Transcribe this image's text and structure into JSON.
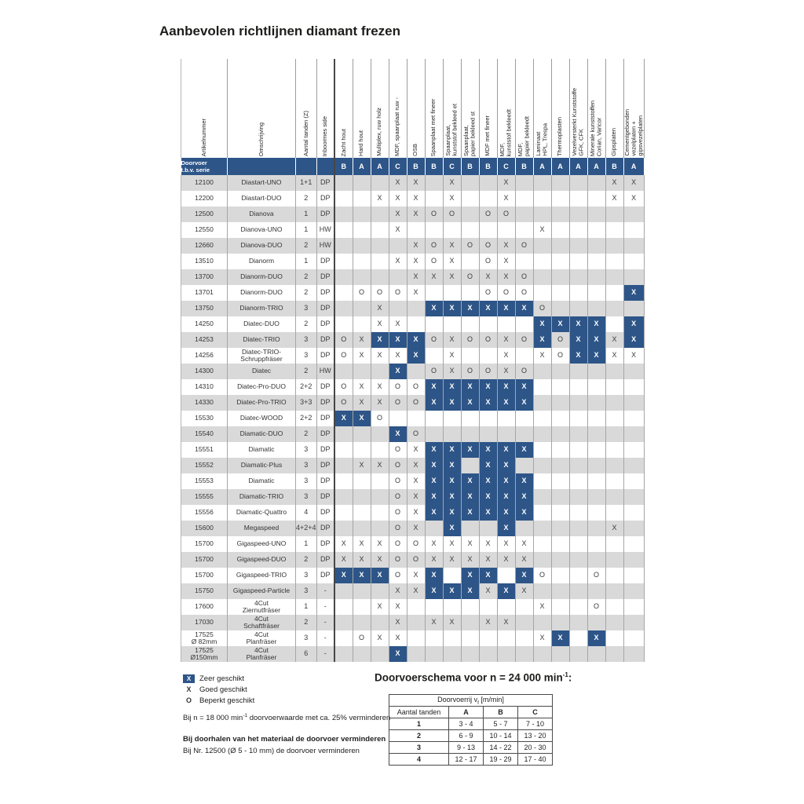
{
  "title": "Aanbevolen richtlijnen diamant frezen",
  "colors": {
    "blue": "#2d5588",
    "grey_row": "#d9d9d9"
  },
  "matrix": {
    "left_headers": [
      "Artikelnummer",
      "Omschrijving",
      "Aantal tanden (Z)",
      "Inboormes side"
    ],
    "material_headers": [
      "Zacht hout",
      "Hard hout",
      "Multiplex, ruw holz",
      "MDF, spaanplaat ruw -",
      "OSB",
      "Spaanplaat met fineer",
      "Spaanplaat,\nkunststof bekleed et",
      "Spaanplaat,\npapier bekleed st",
      "MDF met fineer",
      "MDF,\nkunststof bekleedt",
      "MDF,\npapier bekleedt",
      "Laminaat\nHPL, Trespa",
      "Thermoplasten",
      "Vezelversterkt Kunststoffe\nGFK, CFK",
      "Minerale kunststoffen\nCorian, Varicor",
      "Gipsplaten",
      "Cementgebonden\nvezelplaten +\ngipsvezelplaten"
    ],
    "doorvoer_label": "Doorvoer\nt.b.v. serie",
    "doorvoer_letters": [
      "B",
      "A",
      "A",
      "C",
      "B",
      "B",
      "C",
      "B",
      "B",
      "C",
      "B",
      "A",
      "A",
      "A",
      "A",
      "B",
      "A"
    ],
    "rows": [
      {
        "nr": "12100",
        "name": "Diastart-UNO",
        "tanden": "1+1",
        "boring": "DP",
        "cells": [
          "",
          "",
          "",
          "X",
          "X",
          "",
          "X",
          "",
          "",
          "X",
          "",
          "",
          "",
          "",
          "",
          "X",
          "X"
        ]
      },
      {
        "nr": "12200",
        "name": "Diastart-DUO",
        "tanden": "2",
        "boring": "DP",
        "cells": [
          "",
          "",
          "X",
          "X",
          "X",
          "",
          "X",
          "",
          "",
          "X",
          "",
          "",
          "",
          "",
          "",
          "X",
          "X"
        ]
      },
      {
        "nr": "12500",
        "name": "Dianova",
        "tanden": "1",
        "boring": "DP",
        "cells": [
          "",
          "",
          "",
          "X",
          "X",
          "O",
          "O",
          "",
          "O",
          "O",
          "",
          "",
          "",
          "",
          "",
          "",
          ""
        ]
      },
      {
        "nr": "12550",
        "name": "Dianova-UNO",
        "tanden": "1",
        "boring": "HW",
        "cells": [
          "",
          "",
          "",
          "X",
          "",
          "",
          "",
          "",
          "",
          "",
          "",
          "X",
          "",
          "",
          "",
          "",
          ""
        ]
      },
      {
        "nr": "12660",
        "name": "Dianova-DUO",
        "tanden": "2",
        "boring": "HW",
        "cells": [
          "",
          "",
          "",
          "",
          "X",
          "O",
          "X",
          "O",
          "O",
          "X",
          "O",
          "",
          "",
          "",
          "",
          "",
          ""
        ]
      },
      {
        "nr": "13510",
        "name": "Dianorm",
        "tanden": "1",
        "boring": "DP",
        "cells": [
          "",
          "",
          "",
          "X",
          "X",
          "O",
          "X",
          "",
          "O",
          "X",
          "",
          "",
          "",
          "",
          "",
          "",
          ""
        ]
      },
      {
        "nr": "13700",
        "name": "Dianorm-DUO",
        "tanden": "2",
        "boring": "DP",
        "cells": [
          "",
          "",
          "",
          "",
          "X",
          "X",
          "X",
          "O",
          "X",
          "X",
          "O",
          "",
          "",
          "",
          "",
          "",
          ""
        ]
      },
      {
        "nr": "13701",
        "name": "Dianorm-DUO",
        "tanden": "2",
        "boring": "DP",
        "cells": [
          "",
          "O",
          "O",
          "O",
          "X",
          "",
          "",
          "",
          "O",
          "O",
          "O",
          "",
          "",
          "",
          "",
          "",
          "BX"
        ]
      },
      {
        "nr": "13750",
        "name": "Dianorm-TRIO",
        "tanden": "3",
        "boring": "DP",
        "cells": [
          "",
          "",
          "X",
          "",
          "",
          "BX",
          "BX",
          "BX",
          "BX",
          "BX",
          "BX",
          "O",
          "",
          "",
          "",
          "",
          ""
        ]
      },
      {
        "nr": "14250",
        "name": "Diatec-DUO",
        "tanden": "2",
        "boring": "DP",
        "cells": [
          "",
          "",
          "X",
          "X",
          "",
          "",
          "",
          "",
          "",
          "",
          "",
          "BX",
          "BX",
          "BX",
          "BX",
          "",
          "BX"
        ]
      },
      {
        "nr": "14253",
        "name": "Diatec-TRIO",
        "tanden": "3",
        "boring": "DP",
        "cells": [
          "O",
          "X",
          "BX",
          "BX",
          "BX",
          "O",
          "X",
          "O",
          "O",
          "X",
          "O",
          "BX",
          "O",
          "BX",
          "BX",
          "X",
          "BX"
        ]
      },
      {
        "nr": "14256",
        "name": "Diatec-TRIO-\nSchruppfräser",
        "tanden": "3",
        "boring": "DP",
        "cells": [
          "O",
          "X",
          "X",
          "X",
          "BX",
          "",
          "X",
          "",
          "",
          "X",
          "",
          "X",
          "O",
          "BX",
          "BX",
          "X",
          "X"
        ]
      },
      {
        "nr": "14300",
        "name": "Diatec",
        "tanden": "2",
        "boring": "HW",
        "cells": [
          "",
          "",
          "",
          "BX",
          "",
          "O",
          "X",
          "O",
          "O",
          "X",
          "O",
          "",
          "",
          "",
          "",
          "",
          ""
        ]
      },
      {
        "nr": "14310",
        "name": "Diatec-Pro-DUO",
        "tanden": "2+2",
        "boring": "DP",
        "cells": [
          "O",
          "X",
          "X",
          "O",
          "O",
          "BX",
          "BX",
          "BX",
          "BX",
          "BX",
          "BX",
          "",
          "",
          "",
          "",
          "",
          ""
        ]
      },
      {
        "nr": "14330",
        "name": "Diatec-Pro-TRIO",
        "tanden": "3+3",
        "boring": "DP",
        "cells": [
          "O",
          "X",
          "X",
          "O",
          "O",
          "BX",
          "BX",
          "BX",
          "BX",
          "BX",
          "BX",
          "",
          "",
          "",
          "",
          "",
          ""
        ]
      },
      {
        "nr": "15530",
        "name": "Diatec-WOOD",
        "tanden": "2+2",
        "boring": "DP",
        "cells": [
          "BX",
          "BX",
          "O",
          "",
          "",
          "",
          "",
          "",
          "",
          "",
          "",
          "",
          "",
          "",
          "",
          "",
          ""
        ]
      },
      {
        "nr": "15540",
        "name": "Diamatic-DUO",
        "tanden": "2",
        "boring": "DP",
        "cells": [
          "",
          "",
          "",
          "BX",
          "O",
          "",
          "",
          "",
          "",
          "",
          "",
          "",
          "",
          "",
          "",
          "",
          ""
        ]
      },
      {
        "nr": "15551",
        "name": "Diamatic",
        "tanden": "3",
        "boring": "DP",
        "cells": [
          "",
          "",
          "",
          "O",
          "X",
          "BX",
          "BX",
          "BX",
          "BX",
          "BX",
          "BX",
          "",
          "",
          "",
          "",
          "",
          ""
        ]
      },
      {
        "nr": "15552",
        "name": "Diamatic-Plus",
        "tanden": "3",
        "boring": "DP",
        "cells": [
          "",
          "X",
          "X",
          "O",
          "X",
          "BX",
          "BX",
          "",
          "BX",
          "BX",
          "",
          "",
          "",
          "",
          "",
          "",
          ""
        ]
      },
      {
        "nr": "15553",
        "name": "Diamatic",
        "tanden": "3",
        "boring": "DP",
        "cells": [
          "",
          "",
          "",
          "O",
          "X",
          "BX",
          "BX",
          "BX",
          "BX",
          "BX",
          "BX",
          "",
          "",
          "",
          "",
          "",
          ""
        ]
      },
      {
        "nr": "15555",
        "name": "Diamatic-TRIO",
        "tanden": "3",
        "boring": "DP",
        "cells": [
          "",
          "",
          "",
          "O",
          "X",
          "BX",
          "BX",
          "BX",
          "BX",
          "BX",
          "BX",
          "",
          "",
          "",
          "",
          "",
          ""
        ]
      },
      {
        "nr": "15556",
        "name": "Diamatic-Quattro",
        "tanden": "4",
        "boring": "DP",
        "cells": [
          "",
          "",
          "",
          "O",
          "X",
          "BX",
          "BX",
          "BX",
          "BX",
          "BX",
          "BX",
          "",
          "",
          "",
          "",
          "",
          ""
        ]
      },
      {
        "nr": "15600",
        "name": "Megaspeed",
        "tanden": "4+2+4",
        "boring": "DP",
        "cells": [
          "",
          "",
          "",
          "O",
          "X",
          "",
          "BX",
          "",
          "",
          "BX",
          "",
          "",
          "",
          "",
          "",
          "X",
          ""
        ]
      },
      {
        "nr": "15700",
        "name": "Gigaspeed-UNO",
        "tanden": "1",
        "boring": "DP",
        "cells": [
          "X",
          "X",
          "X",
          "O",
          "O",
          "X",
          "X",
          "X",
          "X",
          "X",
          "X",
          "",
          "",
          "",
          "",
          "",
          ""
        ]
      },
      {
        "nr": "15700",
        "name": "Gigaspeed-DUO",
        "tanden": "2",
        "boring": "DP",
        "cells": [
          "X",
          "X",
          "X",
          "O",
          "O",
          "X",
          "X",
          "X",
          "X",
          "X",
          "X",
          "",
          "",
          "",
          "",
          "",
          ""
        ]
      },
      {
        "nr": "15700",
        "name": "Gigaspeed-TRIO",
        "tanden": "3",
        "boring": "DP",
        "cells": [
          "BX",
          "BX",
          "BX",
          "O",
          "X",
          "BX",
          "",
          "BX",
          "BX",
          "",
          "BX",
          "O",
          "",
          "",
          "O",
          "",
          ""
        ]
      },
      {
        "nr": "15750",
        "name": "Gigaspeed-Particle",
        "tanden": "3",
        "boring": "-",
        "cells": [
          "",
          "",
          "",
          "X",
          "X",
          "BX",
          "BX",
          "BX",
          "X",
          "BX",
          "X",
          "",
          "",
          "",
          "",
          "",
          ""
        ]
      },
      {
        "nr": "17600",
        "name": "4Cut\nZiernutfräser",
        "tanden": "1",
        "boring": "-",
        "cells": [
          "",
          "",
          "X",
          "X",
          "",
          "",
          "",
          "",
          "",
          "",
          "",
          "X",
          "",
          "",
          "O",
          "",
          ""
        ]
      },
      {
        "nr": "17030",
        "name": "4Cut\nSchaftfräser",
        "tanden": "2",
        "boring": "-",
        "cells": [
          "",
          "",
          "",
          "X",
          "",
          "X",
          "X",
          "",
          "X",
          "X",
          "",
          "",
          "",
          "",
          "",
          "",
          ""
        ]
      },
      {
        "nr": "17525\nØ 82mm",
        "name": "4Cut\nPlanfräser",
        "tanden": "3",
        "boring": "-",
        "cells": [
          "",
          "O",
          "X",
          "X",
          "",
          "",
          "",
          "",
          "",
          "",
          "",
          "X",
          "BX",
          "",
          "BX",
          "",
          ""
        ]
      },
      {
        "nr": "17525\nØ150mm",
        "name": "4Cut\nPlanfräser",
        "tanden": "6",
        "boring": "-",
        "cells": [
          "",
          "",
          "",
          "BX",
          "",
          "",
          "",
          "",
          "",
          "",
          "",
          "",
          "",
          "",
          "",
          "",
          ""
        ]
      }
    ]
  },
  "legend": {
    "items": [
      {
        "mark": "X",
        "variant": "blue",
        "label": "Zeer geschikt"
      },
      {
        "mark": "X",
        "variant": "plain",
        "label": "Goed geschikt"
      },
      {
        "mark": "O",
        "variant": "plain",
        "label": "Beperkt geschikt"
      }
    ]
  },
  "notes": {
    "note1_pre": "Bij  n = 18 000 min",
    "note1_sup": "-1",
    "note1_post": "  doorvoerwaarde met ca. 25% verminderen",
    "note2": "Bij doorhalen van het materiaal de doorvoer verminderen",
    "note3": "Bij Nr. 12500 (Ø 5 - 10 mm) de doorvoer verminderen"
  },
  "schema": {
    "title_pre": "Doorvoerschema voor  n = 24 000 min",
    "title_sup": "-1",
    "title_post": ":",
    "span_pre": "Doorvoerrij  v",
    "span_sub": "f",
    "span_post": " [m/min]",
    "col_headers": [
      "Aantal tanden",
      "A",
      "B",
      "C"
    ],
    "rows": [
      [
        "1",
        "3 - 4",
        "5 - 7",
        "7 - 10"
      ],
      [
        "2",
        "6 - 9",
        "10 - 14",
        "13 - 20"
      ],
      [
        "3",
        "9 - 13",
        "14 - 22",
        "20 - 30"
      ],
      [
        "4",
        "12 - 17",
        "19 - 29",
        "17 - 40"
      ]
    ]
  }
}
